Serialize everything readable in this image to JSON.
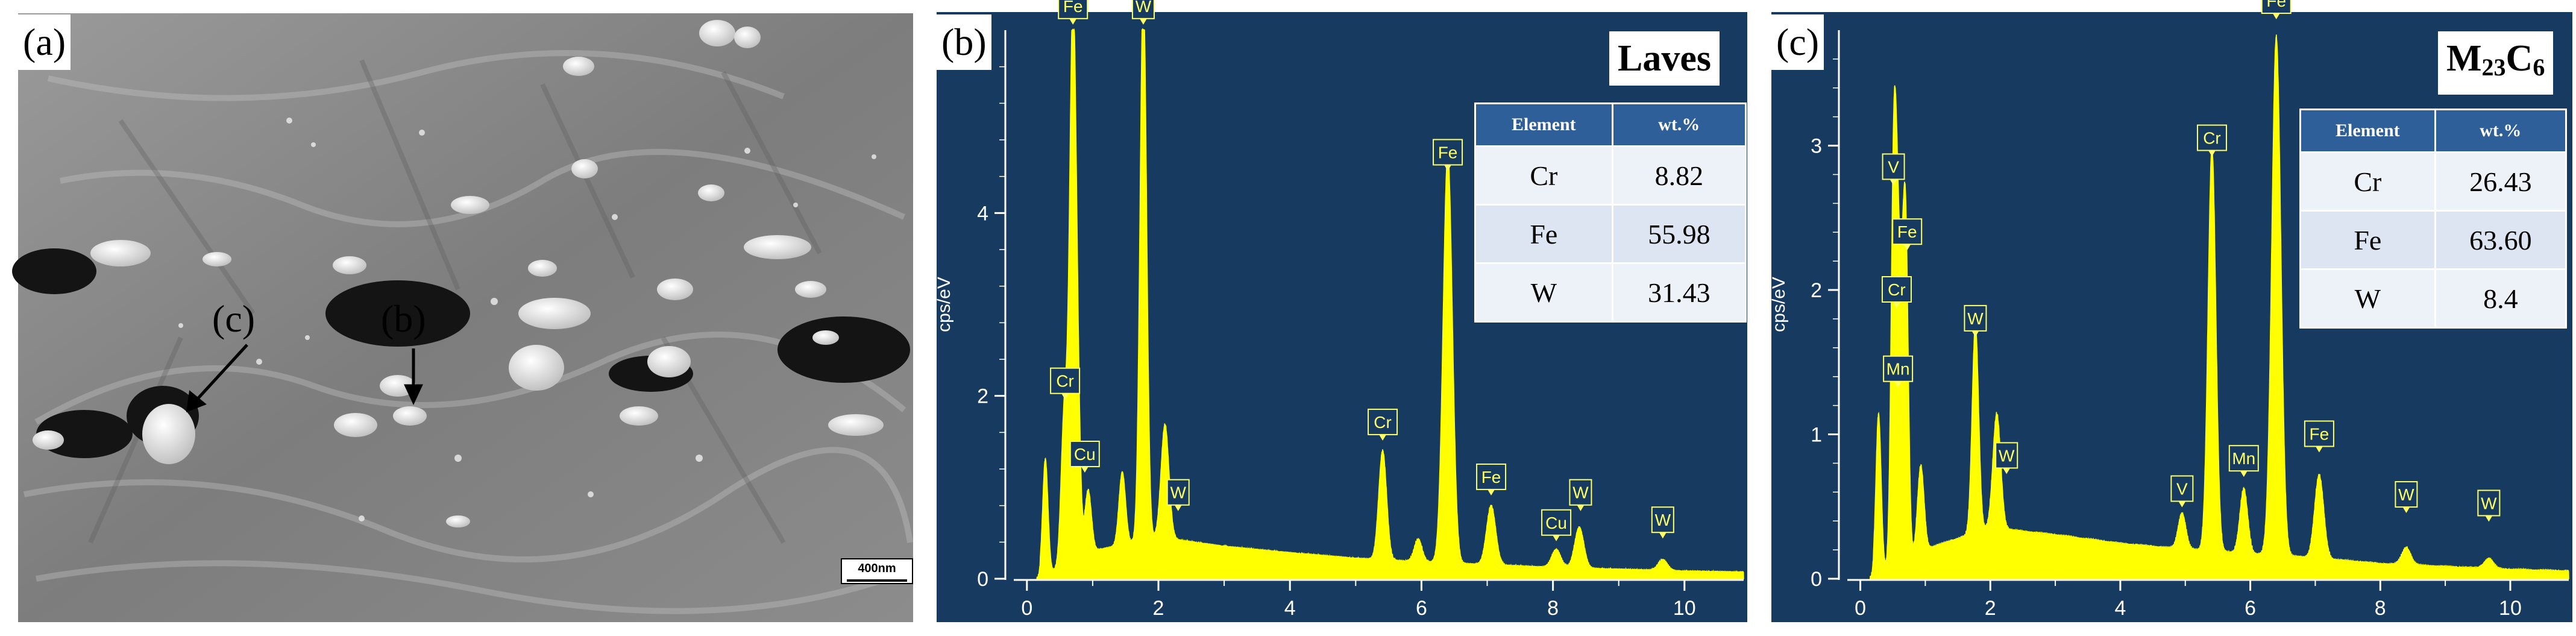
{
  "panel_a": {
    "tag": "(a)",
    "marker_c": "(c)",
    "marker_b": "(b)",
    "scale_bar": "400nm"
  },
  "panel_b": {
    "tag": "(b)",
    "title": "Laves",
    "ylabel": "cps/eV",
    "table": {
      "headers": [
        "Element",
        "wt.%"
      ],
      "rows": [
        [
          "Cr",
          "8.82"
        ],
        [
          "Fe",
          "55.98"
        ],
        [
          "W",
          "31.43"
        ]
      ]
    }
  },
  "panel_c": {
    "tag": "(c)",
    "title_main": "M",
    "title_sub1": "23",
    "title_mid": "C",
    "title_sub2": "6",
    "ylabel": "cps/eV",
    "table": {
      "headers": [
        "Element",
        "wt.%"
      ],
      "rows": [
        [
          "Cr",
          "26.43"
        ],
        [
          "Fe",
          "63.60"
        ],
        [
          "W",
          "8.4"
        ]
      ]
    }
  },
  "colors": {
    "plot_bg": "#173a60",
    "spectrum": "#ffff00",
    "label_text": "#ffff66",
    "axis": "#ffffff"
  },
  "chart_data": [
    {
      "type": "area",
      "title": "Laves",
      "ylabel": "cps/eV",
      "xlim": [
        -0.2,
        10.9
      ],
      "ylim": [
        0,
        6
      ],
      "xticks": [
        0,
        2,
        4,
        6,
        8,
        10
      ],
      "yticks": [
        0,
        2,
        4
      ],
      "background": [
        [
          0.2,
          0.05
        ],
        [
          0.5,
          0.1
        ],
        [
          1.0,
          0.3
        ],
        [
          2.0,
          0.45
        ],
        [
          3.0,
          0.35
        ],
        [
          4.0,
          0.28
        ],
        [
          5.0,
          0.22
        ],
        [
          6.0,
          0.18
        ],
        [
          7.0,
          0.15
        ],
        [
          8.0,
          0.12
        ],
        [
          9.0,
          0.1
        ],
        [
          10.0,
          0.08
        ],
        [
          10.8,
          0.07
        ]
      ],
      "peaks": [
        {
          "label": "Cr",
          "energy": 0.57,
          "height": 1.7,
          "width": 0.05
        },
        {
          "label": "Fe",
          "energy": 0.7,
          "height": 6.1,
          "width": 0.05
        },
        {
          "label": "Cu",
          "energy": 0.93,
          "height": 0.7,
          "width": 0.05
        },
        {
          "label": "W",
          "energy": 1.77,
          "height": 6.1,
          "width": 0.05
        },
        {
          "label": "W",
          "energy": 2.1,
          "height": 1.25,
          "width": 0.06
        },
        {
          "label": "Cr",
          "energy": 5.41,
          "height": 1.2,
          "width": 0.06
        },
        {
          "label": "Fe",
          "energy": 6.4,
          "height": 4.5,
          "width": 0.07
        },
        {
          "label": "Fe",
          "energy": 7.06,
          "height": 0.65,
          "width": 0.07
        },
        {
          "label": "Cu",
          "energy": 8.05,
          "height": 0.2,
          "width": 0.07
        },
        {
          "label": "W",
          "energy": 8.4,
          "height": 0.45,
          "width": 0.07
        },
        {
          "label": "W",
          "energy": 9.67,
          "height": 0.12,
          "width": 0.07
        }
      ],
      "minor_peaks": [
        {
          "energy": 0.28,
          "height": 1.25,
          "width": 0.04
        },
        {
          "energy": 0.78,
          "height": 1.0,
          "width": 0.04
        },
        {
          "energy": 1.45,
          "height": 0.8,
          "width": 0.05
        },
        {
          "energy": 5.95,
          "height": 0.25,
          "width": 0.06
        }
      ],
      "label_positions": [
        {
          "text": "Fe",
          "energy": 0.7,
          "y": 6.1
        },
        {
          "text": "W",
          "energy": 1.77,
          "y": 6.1
        },
        {
          "text": "Cr",
          "energy": 0.58,
          "y": 2.0
        },
        {
          "text": "Cu",
          "energy": 0.88,
          "y": 1.2
        },
        {
          "text": "W",
          "energy": 2.3,
          "y": 0.78
        },
        {
          "text": "Cr",
          "energy": 5.41,
          "y": 1.55
        },
        {
          "text": "Fe",
          "energy": 6.4,
          "y": 4.5
        },
        {
          "text": "Fe",
          "energy": 7.06,
          "y": 0.95
        },
        {
          "text": "W",
          "energy": 8.42,
          "y": 0.78
        },
        {
          "text": "Cu",
          "energy": 8.05,
          "y": 0.45
        },
        {
          "text": "W",
          "energy": 9.67,
          "y": 0.48
        }
      ]
    },
    {
      "type": "area",
      "title": "M23C6",
      "ylabel": "cps/eV",
      "xlim": [
        -0.2,
        10.9
      ],
      "ylim": [
        0,
        3.8
      ],
      "xticks": [
        0,
        2,
        4,
        6,
        8,
        10
      ],
      "yticks": [
        0,
        1,
        2,
        3
      ],
      "background": [
        [
          0.2,
          0.03
        ],
        [
          0.5,
          0.08
        ],
        [
          1.0,
          0.2
        ],
        [
          2.0,
          0.35
        ],
        [
          3.0,
          0.3
        ],
        [
          4.0,
          0.24
        ],
        [
          5.0,
          0.2
        ],
        [
          6.0,
          0.17
        ],
        [
          7.0,
          0.14
        ],
        [
          8.0,
          0.1
        ],
        [
          9.0,
          0.08
        ],
        [
          10.0,
          0.06
        ],
        [
          10.8,
          0.05
        ]
      ],
      "peaks": [
        {
          "label": "V",
          "energy": 0.51,
          "height": 2.5,
          "width": 0.04
        },
        {
          "label": "Cr",
          "energy": 0.57,
          "height": 1.8,
          "width": 0.04
        },
        {
          "label": "Mn",
          "energy": 0.64,
          "height": 1.2,
          "width": 0.04
        },
        {
          "label": "Fe",
          "energy": 0.7,
          "height": 2.1,
          "width": 0.04
        },
        {
          "label": "W",
          "energy": 1.77,
          "height": 1.45,
          "width": 0.05
        },
        {
          "label": "W",
          "energy": 2.1,
          "height": 0.8,
          "width": 0.06
        },
        {
          "label": "V",
          "energy": 4.95,
          "height": 0.25,
          "width": 0.06
        },
        {
          "label": "Cr",
          "energy": 5.41,
          "height": 2.8,
          "width": 0.06
        },
        {
          "label": "Mn",
          "energy": 5.9,
          "height": 0.45,
          "width": 0.06
        },
        {
          "label": "Fe",
          "energy": 6.4,
          "height": 3.6,
          "width": 0.07
        },
        {
          "label": "Fe",
          "energy": 7.06,
          "height": 0.58,
          "width": 0.07
        },
        {
          "label": "W",
          "energy": 8.4,
          "height": 0.12,
          "width": 0.07
        },
        {
          "label": "W",
          "energy": 9.67,
          "height": 0.07,
          "width": 0.07
        }
      ],
      "minor_peaks": [
        {
          "energy": 0.28,
          "height": 1.1,
          "width": 0.04
        },
        {
          "energy": 0.93,
          "height": 0.6,
          "width": 0.05
        }
      ],
      "label_positions": [
        {
          "text": "V",
          "energy": 0.51,
          "y": 2.75
        },
        {
          "text": "Fe",
          "energy": 0.72,
          "y": 2.3
        },
        {
          "text": "Cr",
          "energy": 0.56,
          "y": 1.9
        },
        {
          "text": "Mn",
          "energy": 0.58,
          "y": 1.35
        },
        {
          "text": "W",
          "energy": 1.77,
          "y": 1.7
        },
        {
          "text": "W",
          "energy": 2.25,
          "y": 0.75
        },
        {
          "text": "Cr",
          "energy": 5.41,
          "y": 2.95
        },
        {
          "text": "V",
          "energy": 4.95,
          "y": 0.52
        },
        {
          "text": "Mn",
          "energy": 5.9,
          "y": 0.73
        },
        {
          "text": "Fe",
          "energy": 7.06,
          "y": 0.9
        },
        {
          "text": "Fe",
          "energy": 6.4,
          "y": 3.9
        },
        {
          "text": "W",
          "energy": 8.4,
          "y": 0.48
        },
        {
          "text": "W",
          "energy": 9.67,
          "y": 0.42
        }
      ]
    }
  ]
}
